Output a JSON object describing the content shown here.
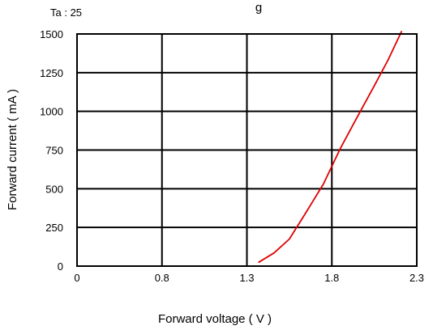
{
  "chart_data": {
    "type": "line",
    "title": "g",
    "subtitle": "Ta : 25",
    "xlabel": "Forward voltage ( V )",
    "ylabel": "Forward current ( mA )",
    "xlim": [
      0,
      2.3
    ],
    "ylim": [
      0,
      1500
    ],
    "x_ticks": [
      0,
      0.8,
      1.3,
      1.8,
      2.3
    ],
    "x_tick_labels": [
      "0",
      "0.8",
      "1.3",
      "1.8",
      "2.3"
    ],
    "y_ticks": [
      0,
      250,
      500,
      750,
      1000,
      1250,
      1500
    ],
    "y_tick_labels": [
      "0",
      "250",
      "500",
      "750",
      "1000",
      "1250",
      "1500"
    ],
    "grid": true,
    "series": [
      {
        "color": "#e00000",
        "points": [
          [
            1.37,
            25
          ],
          [
            1.46,
            85
          ],
          [
            1.55,
            175
          ],
          [
            1.65,
            350
          ],
          [
            1.75,
            530
          ],
          [
            1.85,
            760
          ],
          [
            1.95,
            965
          ],
          [
            2.05,
            1165
          ],
          [
            2.13,
            1330
          ],
          [
            2.21,
            1515
          ]
        ]
      }
    ]
  }
}
